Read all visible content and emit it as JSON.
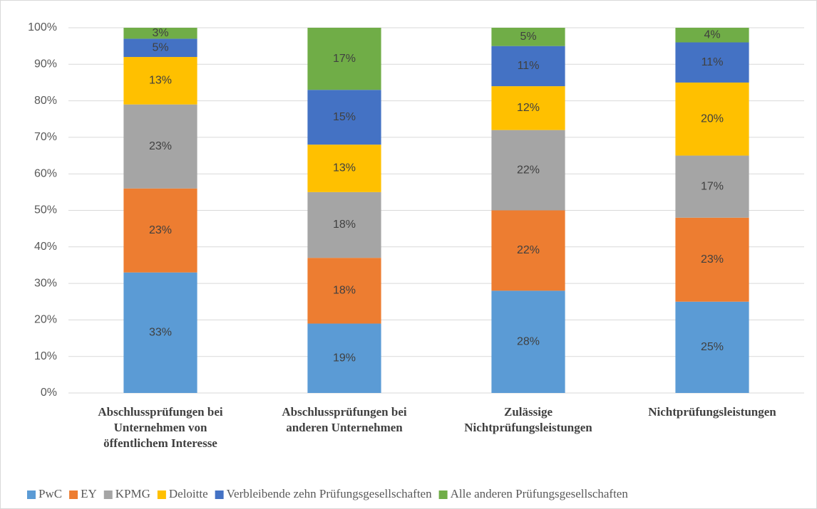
{
  "chart_data": {
    "type": "stacked_bar",
    "categories": [
      "Abschlussprüfungen bei\nUnternehmen von\nöffentlichem Interesse",
      "Abschlussprüfungen bei\nanderen Unternehmen",
      "Zulässige\nNichtprüfungsleistungen",
      "Nichtprüfungsleistungen"
    ],
    "series": [
      {
        "name": "PwC",
        "color": "#5b9bd5",
        "values": [
          33,
          19,
          28,
          25
        ],
        "value_labels": [
          "33%",
          "19%",
          "28%",
          "25%"
        ]
      },
      {
        "name": "EY",
        "color": "#ed7d31",
        "values": [
          23,
          18,
          22,
          23
        ],
        "value_labels": [
          "23%",
          "18%",
          "22%",
          "23%"
        ]
      },
      {
        "name": "KPMG",
        "color": "#a5a5a5",
        "values": [
          23,
          18,
          22,
          17
        ],
        "value_labels": [
          "23%",
          "18%",
          "22%",
          "17%"
        ]
      },
      {
        "name": "Deloitte",
        "color": "#ffc000",
        "values": [
          13,
          13,
          12,
          20
        ],
        "value_labels": [
          "13%",
          "13%",
          "12%",
          "20%"
        ]
      },
      {
        "name": "Verbleibende zehn Prüfungsgesellschaften",
        "color": "#4472c4",
        "values": [
          5,
          15,
          11,
          11
        ],
        "value_labels": [
          "5%",
          "15%",
          "11%",
          "11%"
        ]
      },
      {
        "name": "Alle anderen Prüfungsgesellschaften",
        "color": "#70ad47",
        "values": [
          3,
          17,
          5,
          4
        ],
        "value_labels": [
          "3%",
          "17%",
          "5%",
          "4%"
        ]
      }
    ],
    "ylim": [
      0,
      100
    ],
    "yticks": [
      {
        "value": 0,
        "label": "0%"
      },
      {
        "value": 10,
        "label": "10%"
      },
      {
        "value": 20,
        "label": "20%"
      },
      {
        "value": 30,
        "label": "30%"
      },
      {
        "value": 40,
        "label": "40%"
      },
      {
        "value": 50,
        "label": "50%"
      },
      {
        "value": 60,
        "label": "60%"
      },
      {
        "value": 70,
        "label": "70%"
      },
      {
        "value": 80,
        "label": "80%"
      },
      {
        "value": 90,
        "label": "90%"
      },
      {
        "value": 100,
        "label": "100%"
      }
    ],
    "grid": true,
    "legend": "bottom"
  }
}
